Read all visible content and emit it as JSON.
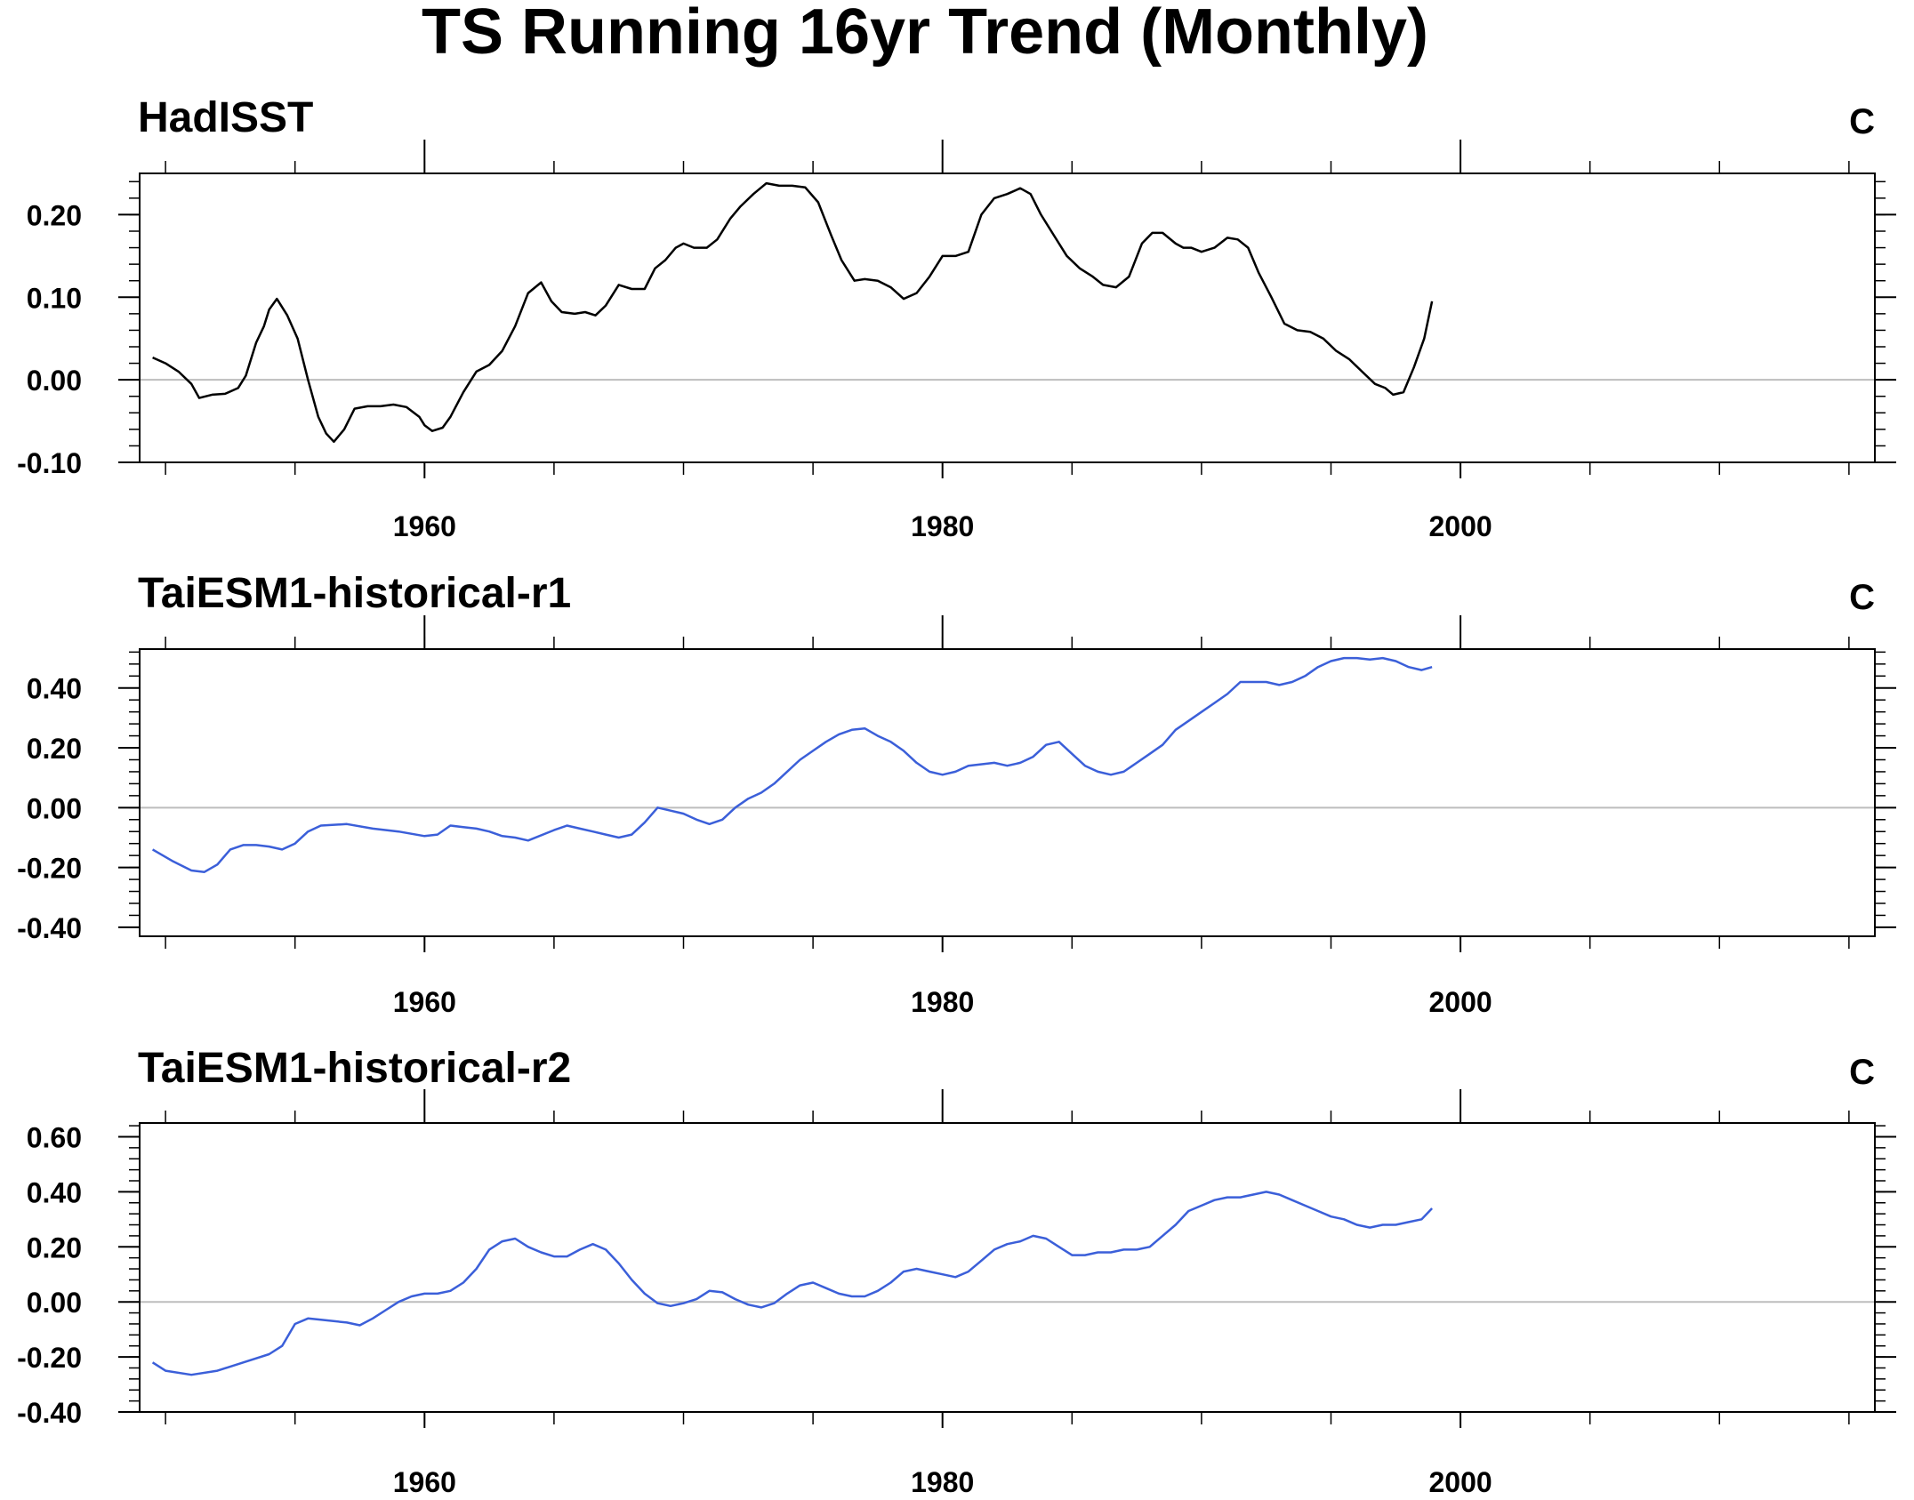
{
  "figure": {
    "title": "TS Running 16yr Trend (Monthly)"
  },
  "chart_data": [
    {
      "type": "line",
      "title": "HadISST",
      "units": "C",
      "xlim": [
        1949,
        2016
      ],
      "ylim": [
        -0.1,
        0.25
      ],
      "xticks": [
        1960,
        1980,
        2000
      ],
      "yticks": [
        -0.1,
        0.0,
        0.1,
        0.2
      ],
      "ytick_labels": [
        "-0.10",
        "0.00",
        "0.10",
        "0.20"
      ],
      "zero_line": true,
      "grid": false,
      "color": "#000000",
      "x": [
        1949.5,
        1950.0,
        1950.5,
        1951.0,
        1951.3,
        1951.8,
        1952.3,
        1952.8,
        1953.1,
        1953.5,
        1953.8,
        1954.0,
        1954.3,
        1954.7,
        1955.1,
        1955.5,
        1955.9,
        1956.2,
        1956.5,
        1956.9,
        1957.3,
        1957.8,
        1958.3,
        1958.8,
        1959.3,
        1959.8,
        1960.0,
        1960.3,
        1960.7,
        1961.0,
        1961.5,
        1962.0,
        1962.5,
        1963.0,
        1963.5,
        1964.0,
        1964.5,
        1964.9,
        1965.3,
        1965.8,
        1966.2,
        1966.6,
        1967.0,
        1967.5,
        1968.0,
        1968.5,
        1968.9,
        1969.3,
        1969.7,
        1970.0,
        1970.4,
        1970.9,
        1971.3,
        1971.8,
        1972.2,
        1972.7,
        1973.2,
        1973.7,
        1974.2,
        1974.7,
        1975.2,
        1975.7,
        1976.1,
        1976.6,
        1977.0,
        1977.5,
        1978.0,
        1978.5,
        1979.0,
        1979.5,
        1980.0,
        1980.5,
        1981.0,
        1981.5,
        1982.0,
        1982.5,
        1983.0,
        1983.4,
        1983.8,
        1984.3,
        1984.8,
        1985.3,
        1985.8,
        1986.2,
        1986.7,
        1987.2,
        1987.7,
        1988.1,
        1988.5,
        1989.0,
        1989.3,
        1989.6,
        1990.0,
        1990.5,
        1991.0,
        1991.4,
        1991.8,
        1992.2,
        1992.7,
        1993.2,
        1993.7,
        1994.2,
        1994.7,
        1995.2,
        1995.7,
        1996.2,
        1996.7,
        1997.1,
        1997.4,
        1997.8,
        1998.2,
        1998.6,
        1998.9
      ],
      "y": [
        0.027,
        0.02,
        0.01,
        -0.005,
        -0.022,
        -0.018,
        -0.017,
        -0.01,
        0.005,
        0.045,
        0.065,
        0.085,
        0.098,
        0.078,
        0.05,
        0.0,
        -0.045,
        -0.065,
        -0.075,
        -0.06,
        -0.035,
        -0.032,
        -0.032,
        -0.03,
        -0.033,
        -0.045,
        -0.055,
        -0.062,
        -0.058,
        -0.045,
        -0.015,
        0.01,
        0.018,
        0.035,
        0.065,
        0.105,
        0.118,
        0.095,
        0.082,
        0.08,
        0.082,
        0.078,
        0.09,
        0.115,
        0.11,
        0.11,
        0.135,
        0.145,
        0.16,
        0.165,
        0.16,
        0.16,
        0.17,
        0.195,
        0.21,
        0.225,
        0.238,
        0.235,
        0.235,
        0.233,
        0.215,
        0.175,
        0.145,
        0.12,
        0.122,
        0.12,
        0.112,
        0.098,
        0.105,
        0.125,
        0.15,
        0.15,
        0.155,
        0.2,
        0.22,
        0.225,
        0.232,
        0.225,
        0.2,
        0.175,
        0.15,
        0.135,
        0.125,
        0.115,
        0.112,
        0.125,
        0.165,
        0.178,
        0.178,
        0.165,
        0.16,
        0.16,
        0.155,
        0.16,
        0.172,
        0.17,
        0.16,
        0.13,
        0.1,
        0.068,
        0.06,
        0.058,
        0.05,
        0.035,
        0.025,
        0.01,
        -0.005,
        -0.01,
        -0.018,
        -0.015,
        0.015,
        0.05,
        0.095
      ]
    },
    {
      "type": "line",
      "title": "TaiESM1-historical-r1",
      "units": "C",
      "xlim": [
        1949,
        2016
      ],
      "ylim": [
        -0.43,
        0.53
      ],
      "xticks": [
        1960,
        1980,
        2000
      ],
      "yticks": [
        -0.4,
        -0.2,
        0.0,
        0.2,
        0.4
      ],
      "ytick_labels": [
        "-0.40",
        "-0.20",
        "0.00",
        "0.20",
        "0.40"
      ],
      "zero_line": true,
      "grid": false,
      "color": "#3b5fd9",
      "x": [
        1949.5,
        1950.3,
        1951.0,
        1951.5,
        1952.0,
        1952.5,
        1953.0,
        1953.5,
        1954.0,
        1954.5,
        1955.0,
        1955.5,
        1956.0,
        1957.0,
        1958.0,
        1959.0,
        1960.0,
        1960.5,
        1961.0,
        1961.5,
        1962.0,
        1962.5,
        1963.0,
        1963.5,
        1964.0,
        1965.0,
        1965.5,
        1966.0,
        1966.5,
        1967.0,
        1967.5,
        1968.0,
        1968.5,
        1969.0,
        1969.5,
        1970.0,
        1970.5,
        1971.0,
        1971.5,
        1972.0,
        1972.5,
        1973.0,
        1973.5,
        1974.0,
        1974.5,
        1975.0,
        1975.5,
        1976.0,
        1976.5,
        1977.0,
        1977.5,
        1978.0,
        1978.5,
        1979.0,
        1979.5,
        1980.0,
        1980.5,
        1981.0,
        1982.0,
        1982.5,
        1983.0,
        1983.5,
        1984.0,
        1984.5,
        1985.0,
        1985.5,
        1986.0,
        1986.5,
        1987.0,
        1987.5,
        1988.0,
        1988.5,
        1989.0,
        1989.5,
        1990.0,
        1990.5,
        1991.0,
        1991.5,
        1992.0,
        1992.5,
        1993.0,
        1993.5,
        1994.0,
        1994.5,
        1995.0,
        1995.5,
        1996.0,
        1996.5,
        1997.0,
        1997.5,
        1998.0,
        1998.5,
        1998.9
      ],
      "y": [
        -0.14,
        -0.18,
        -0.21,
        -0.215,
        -0.19,
        -0.14,
        -0.125,
        -0.125,
        -0.13,
        -0.14,
        -0.12,
        -0.08,
        -0.06,
        -0.055,
        -0.07,
        -0.08,
        -0.095,
        -0.09,
        -0.06,
        -0.065,
        -0.07,
        -0.08,
        -0.095,
        -0.1,
        -0.11,
        -0.075,
        -0.06,
        -0.07,
        -0.08,
        -0.09,
        -0.1,
        -0.09,
        -0.05,
        0.0,
        -0.01,
        -0.02,
        -0.04,
        -0.055,
        -0.04,
        0.0,
        0.03,
        0.05,
        0.08,
        0.12,
        0.16,
        0.19,
        0.22,
        0.245,
        0.26,
        0.265,
        0.24,
        0.22,
        0.19,
        0.15,
        0.12,
        0.11,
        0.12,
        0.14,
        0.15,
        0.14,
        0.15,
        0.17,
        0.21,
        0.22,
        0.18,
        0.14,
        0.12,
        0.11,
        0.12,
        0.15,
        0.18,
        0.21,
        0.26,
        0.29,
        0.32,
        0.35,
        0.38,
        0.42,
        0.42,
        0.42,
        0.41,
        0.42,
        0.44,
        0.47,
        0.49,
        0.5,
        0.5,
        0.495,
        0.5,
        0.49,
        0.47,
        0.46,
        0.47
      ]
    },
    {
      "type": "line",
      "title": "TaiESM1-historical-r2",
      "units": "C",
      "xlim": [
        1949,
        2016
      ],
      "ylim": [
        -0.4,
        0.65
      ],
      "xticks": [
        1960,
        1980,
        2000
      ],
      "yticks": [
        -0.4,
        -0.2,
        0.0,
        0.2,
        0.4,
        0.6
      ],
      "ytick_labels": [
        "-0.40",
        "-0.20",
        "0.00",
        "0.20",
        "0.40",
        "0.60"
      ],
      "zero_line": true,
      "grid": false,
      "color": "#3b5fd9",
      "x": [
        1949.5,
        1950.0,
        1951.0,
        1952.0,
        1953.0,
        1954.0,
        1954.5,
        1955.0,
        1955.5,
        1956.0,
        1957.0,
        1957.5,
        1958.0,
        1958.5,
        1959.0,
        1959.5,
        1960.0,
        1960.5,
        1961.0,
        1961.5,
        1962.0,
        1962.5,
        1963.0,
        1963.5,
        1964.0,
        1964.5,
        1965.0,
        1965.5,
        1966.0,
        1966.5,
        1967.0,
        1967.5,
        1968.0,
        1968.5,
        1969.0,
        1969.5,
        1970.0,
        1970.5,
        1971.0,
        1971.5,
        1972.0,
        1972.5,
        1973.0,
        1973.5,
        1974.0,
        1974.5,
        1975.0,
        1975.5,
        1976.0,
        1976.5,
        1977.0,
        1977.5,
        1978.0,
        1978.5,
        1979.0,
        1979.5,
        1980.0,
        1980.5,
        1981.0,
        1981.5,
        1982.0,
        1982.5,
        1983.0,
        1983.5,
        1984.0,
        1984.5,
        1985.0,
        1985.5,
        1986.0,
        1986.5,
        1987.0,
        1987.5,
        1988.0,
        1988.5,
        1989.0,
        1989.5,
        1990.0,
        1990.5,
        1991.0,
        1991.5,
        1992.0,
        1992.5,
        1993.0,
        1993.5,
        1994.0,
        1994.5,
        1995.0,
        1995.5,
        1996.0,
        1996.5,
        1997.0,
        1997.5,
        1998.0,
        1998.5,
        1998.9
      ],
      "y": [
        -0.22,
        -0.25,
        -0.265,
        -0.25,
        -0.22,
        -0.19,
        -0.16,
        -0.08,
        -0.06,
        -0.065,
        -0.075,
        -0.085,
        -0.06,
        -0.03,
        0.0,
        0.02,
        0.03,
        0.03,
        0.04,
        0.07,
        0.12,
        0.19,
        0.22,
        0.23,
        0.2,
        0.18,
        0.165,
        0.165,
        0.19,
        0.21,
        0.19,
        0.14,
        0.08,
        0.03,
        -0.005,
        -0.015,
        -0.005,
        0.01,
        0.04,
        0.035,
        0.01,
        -0.01,
        -0.02,
        -0.005,
        0.03,
        0.06,
        0.07,
        0.05,
        0.03,
        0.02,
        0.02,
        0.04,
        0.07,
        0.11,
        0.12,
        0.11,
        0.1,
        0.09,
        0.11,
        0.15,
        0.19,
        0.21,
        0.22,
        0.24,
        0.23,
        0.2,
        0.17,
        0.17,
        0.18,
        0.18,
        0.19,
        0.19,
        0.2,
        0.24,
        0.28,
        0.33,
        0.35,
        0.37,
        0.38,
        0.38,
        0.39,
        0.4,
        0.39,
        0.37,
        0.35,
        0.33,
        0.31,
        0.3,
        0.28,
        0.27,
        0.28,
        0.28,
        0.29,
        0.3,
        0.34
      ]
    }
  ]
}
